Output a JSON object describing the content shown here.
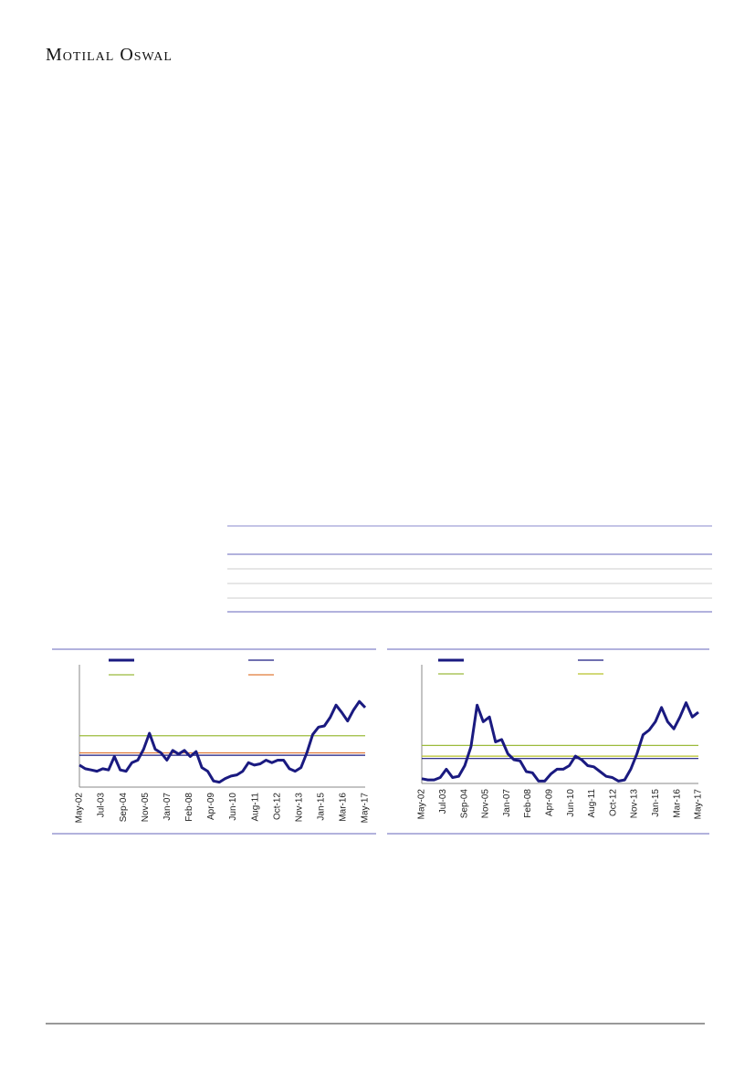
{
  "header": {
    "title": "Motilal Oswal"
  },
  "chart_data": [
    {
      "type": "line",
      "x_labels": [
        "May-02",
        "Jul-03",
        "Sep-04",
        "Nov-05",
        "Jan-07",
        "Feb-08",
        "Apr-09",
        "Jun-10",
        "Aug-11",
        "Oct-12",
        "Nov-13",
        "Jan-15",
        "Mar-16",
        "May-17"
      ],
      "ylim": [
        0,
        100
      ],
      "series": [
        {
          "color": "#1a1a80",
          "values": [
            18,
            15,
            14,
            13,
            15,
            14,
            25,
            14,
            13,
            20,
            22,
            31,
            44,
            31,
            28,
            22,
            30,
            27,
            30,
            25,
            29,
            16,
            13,
            5,
            4,
            7,
            9,
            10,
            13,
            20,
            18,
            19,
            22,
            20,
            22,
            22,
            15,
            13,
            16,
            28,
            43,
            49,
            50,
            57,
            67,
            61,
            54,
            63,
            70,
            65
          ]
        }
      ],
      "reference_lines": [
        {
          "color": "#1a1a80",
          "value": 26
        },
        {
          "color": "#9bbb3c",
          "value": 42
        },
        {
          "color": "#e07b39",
          "value": 28
        }
      ]
    },
    {
      "type": "line",
      "x_labels": [
        "May-02",
        "Jul-03",
        "Sep-04",
        "Nov-05",
        "Jan-07",
        "Feb-08",
        "Apr-09",
        "Jun-10",
        "Aug-11",
        "Oct-12",
        "Nov-13",
        "Jan-15",
        "Mar-16",
        "May-17"
      ],
      "ylim": [
        0,
        100
      ],
      "series": [
        {
          "color": "#1a1a80",
          "values": [
            4,
            3,
            3,
            5,
            12,
            5,
            6,
            15,
            31,
            66,
            52,
            56,
            35,
            37,
            25,
            20,
            19,
            10,
            9,
            2,
            2,
            8,
            12,
            12,
            15,
            23,
            20,
            15,
            14,
            10,
            6,
            5,
            2,
            3,
            12,
            25,
            41,
            45,
            52,
            64,
            52,
            46,
            56,
            68,
            56,
            60
          ]
        }
      ],
      "reference_lines": [
        {
          "color": "#1a1a80",
          "value": 21
        },
        {
          "color": "#9bbb3c",
          "value": 32
        },
        {
          "color": "#b8c22a",
          "value": 23
        }
      ]
    }
  ]
}
